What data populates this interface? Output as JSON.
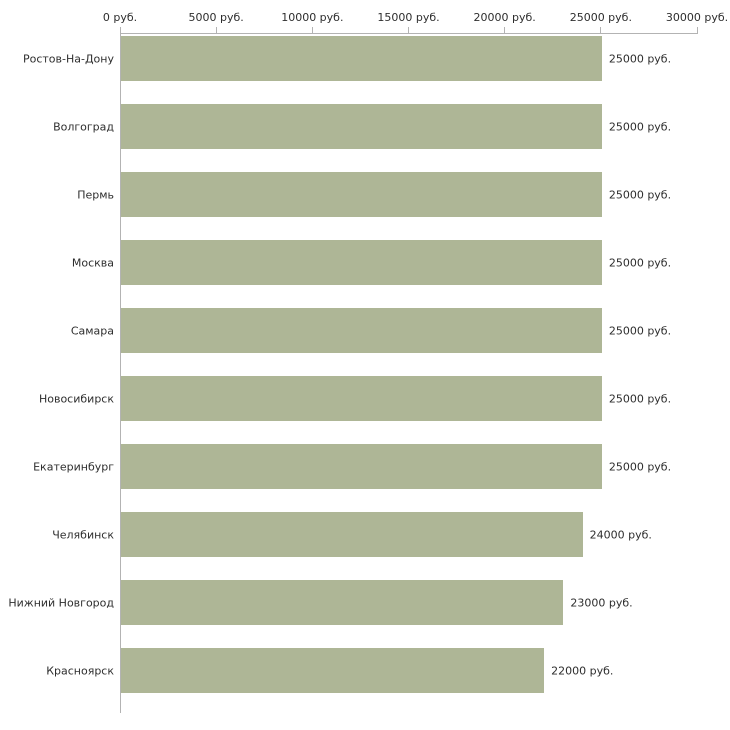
{
  "chart_data": {
    "type": "bar",
    "orientation": "horizontal",
    "title": "",
    "xlabel": "",
    "ylabel": "",
    "categories": [
      "Ростов-На-Дону",
      "Волгоград",
      "Пермь",
      "Москва",
      "Самара",
      "Новосибирск",
      "Екатеринбург",
      "Челябинск",
      "Нижний Новгород",
      "Красноярск"
    ],
    "values": [
      25000,
      25000,
      25000,
      25000,
      25000,
      25000,
      25000,
      24000,
      23000,
      22000
    ],
    "value_labels": [
      "25000 руб.",
      "25000 руб.",
      "25000 руб.",
      "25000 руб.",
      "25000 руб.",
      "25000 руб.",
      "25000 руб.",
      "24000 руб.",
      "23000 руб.",
      "22000 руб."
    ],
    "x_ticks": [
      0,
      5000,
      10000,
      15000,
      20000,
      25000,
      30000
    ],
    "x_tick_labels": [
      "0 руб.",
      "5000 руб.",
      "10000 руб.",
      "15000 руб.",
      "20000 руб.",
      "25000 руб.",
      "30000 руб."
    ],
    "xlim": [
      0,
      30000
    ],
    "grid": false,
    "legend": false,
    "bar_color": "#aeb696",
    "axis_color": "#b3b3b3",
    "text_color": "#2e2e2e",
    "background_color": "#ffffff"
  }
}
